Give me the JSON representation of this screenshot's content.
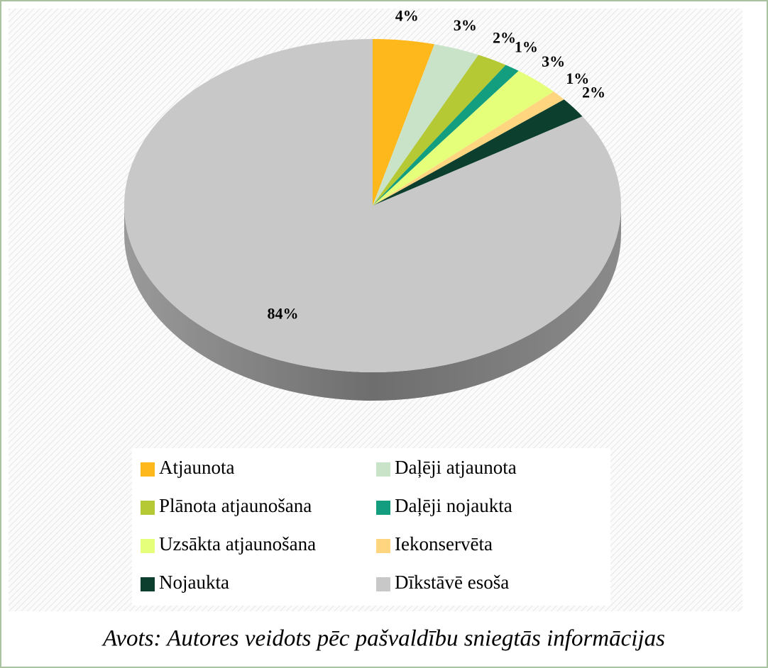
{
  "chart_data": {
    "type": "pie",
    "categories": [
      "Atjaunota",
      "Daļēji atjaunota",
      "Plānota atjaunošana",
      "Daļēji nojaukta",
      "Uzsākta atjaunošana",
      "Iekonservēta",
      "Nojaukta",
      "Dīkstāvē esoša"
    ],
    "values": [
      4,
      3,
      2,
      1,
      3,
      1,
      2,
      84
    ],
    "value_labels": [
      "4%",
      "3%",
      "2%",
      "1%",
      "3%",
      "1%",
      "2%",
      "84%"
    ],
    "colors": [
      "#FFB81C",
      "#C9E3C9",
      "#B5C935",
      "#139E80",
      "#E6FF7A",
      "#FFD580",
      "#0D3F2F",
      "#C8C8C8"
    ],
    "caption": "Avots: Autores veidots pēc pašvaldību sniegtās informācijas"
  }
}
